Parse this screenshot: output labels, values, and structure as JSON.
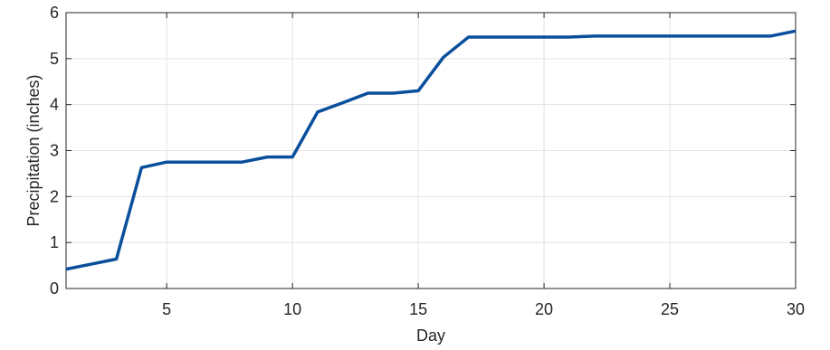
{
  "chart_data": {
    "type": "line",
    "title": "",
    "xlabel": "Day",
    "ylabel": "Precipitation (inches)",
    "xlim": [
      1,
      30
    ],
    "ylim": [
      0,
      6
    ],
    "xticks": [
      5,
      10,
      15,
      20,
      25,
      30
    ],
    "yticks": [
      0,
      1,
      2,
      3,
      4,
      5,
      6
    ],
    "grid": true,
    "line_color": "#0a4f9c",
    "series": [
      {
        "x": [
          1,
          2,
          3,
          4,
          5,
          6,
          7,
          8,
          9,
          10,
          11,
          12,
          13,
          14,
          15,
          16,
          17,
          18,
          19,
          20,
          21,
          22,
          23,
          24,
          25,
          26,
          27,
          28,
          29,
          30
        ],
        "y": [
          0.42,
          0.53,
          0.64,
          2.63,
          2.75,
          2.75,
          2.75,
          2.75,
          2.86,
          2.86,
          3.84,
          4.04,
          4.25,
          4.25,
          4.3,
          5.03,
          5.47,
          5.47,
          5.47,
          5.47,
          5.47,
          5.49,
          5.49,
          5.49,
          5.49,
          5.49,
          5.49,
          5.49,
          5.49,
          5.6
        ]
      }
    ]
  }
}
